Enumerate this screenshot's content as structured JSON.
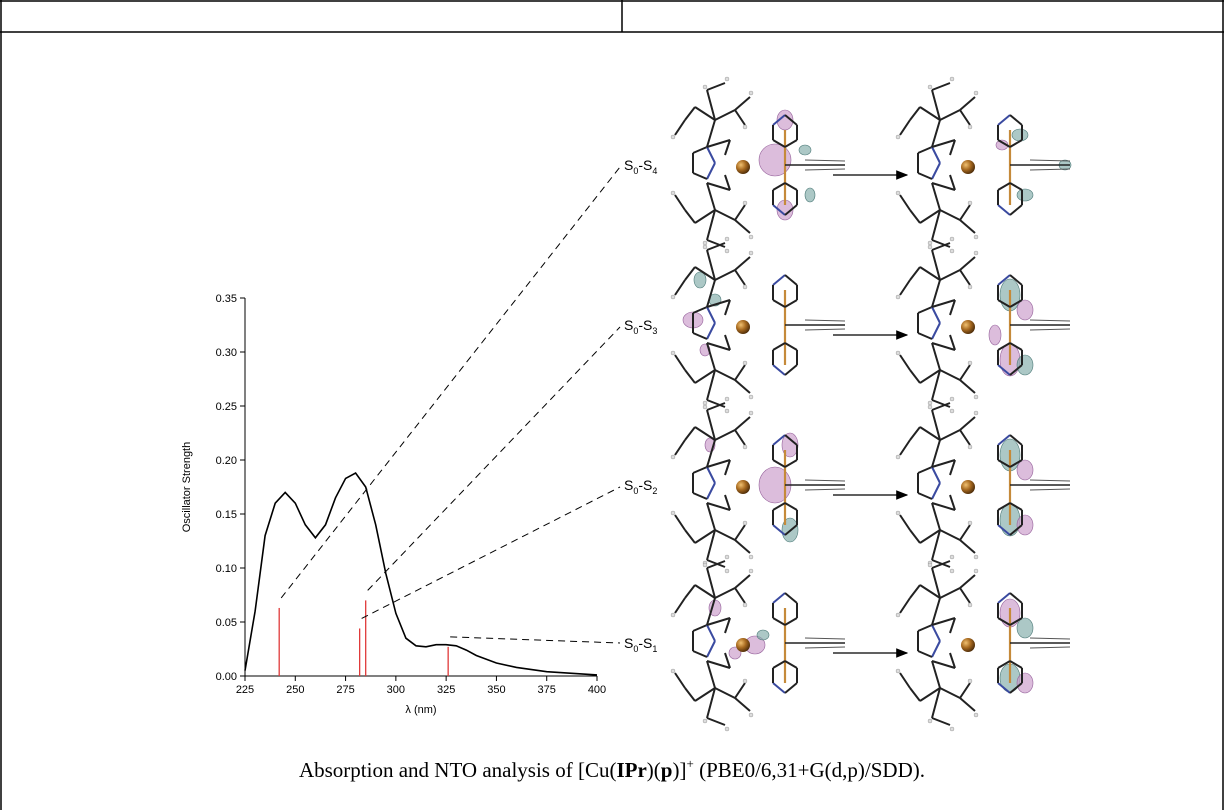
{
  "chart_data": {
    "type": "line",
    "xlabel": "λ (nm)",
    "ylabel": "Oscillator Strength",
    "xlim": [
      225,
      400
    ],
    "ylim": [
      0,
      0.35
    ],
    "xticks": [
      225,
      250,
      275,
      300,
      325,
      350,
      375,
      400
    ],
    "yticks": [
      {
        "value": 0,
        "label": "0.00"
      },
      {
        "value": 0.05,
        "label": "0.05"
      },
      {
        "value": 0.1,
        "label": "0.10"
      },
      {
        "value": 0.15,
        "label": "0.15"
      },
      {
        "value": 0.2,
        "label": "0.20"
      },
      {
        "value": 0.25,
        "label": "0.25"
      },
      {
        "value": 0.3,
        "label": "0.30"
      },
      {
        "value": 0.35,
        "label": "0.35"
      }
    ],
    "x": [
      225,
      230,
      235,
      240,
      245,
      250,
      255,
      260,
      265,
      270,
      275,
      280,
      285,
      290,
      295,
      300,
      305,
      310,
      315,
      320,
      325,
      330,
      335,
      340,
      350,
      360,
      375,
      400
    ],
    "values": [
      0.005,
      0.06,
      0.13,
      0.16,
      0.17,
      0.16,
      0.14,
      0.128,
      0.14,
      0.165,
      0.183,
      0.188,
      0.175,
      0.14,
      0.095,
      0.058,
      0.035,
      0.028,
      0.027,
      0.029,
      0.029,
      0.028,
      0.024,
      0.019,
      0.012,
      0.008,
      0.004,
      0.001
    ],
    "color": "#000000",
    "sticks": {
      "x": [
        242,
        282,
        285,
        326
      ],
      "values": [
        0.063,
        0.044,
        0.07,
        0.027
      ],
      "color": "#e03a3a"
    }
  },
  "transitions": [
    {
      "label": [
        "S",
        "0",
        "-S",
        "4"
      ]
    },
    {
      "label": [
        "S",
        "0",
        "-S",
        "3"
      ]
    },
    {
      "label": [
        "S",
        "0",
        "-S",
        "2"
      ]
    },
    {
      "label": [
        "S",
        "0",
        "-S",
        "1"
      ]
    }
  ],
  "caption": [
    "Absorption and NTO analysis of [Cu(",
    "IPr",
    ")(",
    "p",
    ")]",
    "+",
    " (PBE0/6,31+G(d,p)/SDD)."
  ]
}
